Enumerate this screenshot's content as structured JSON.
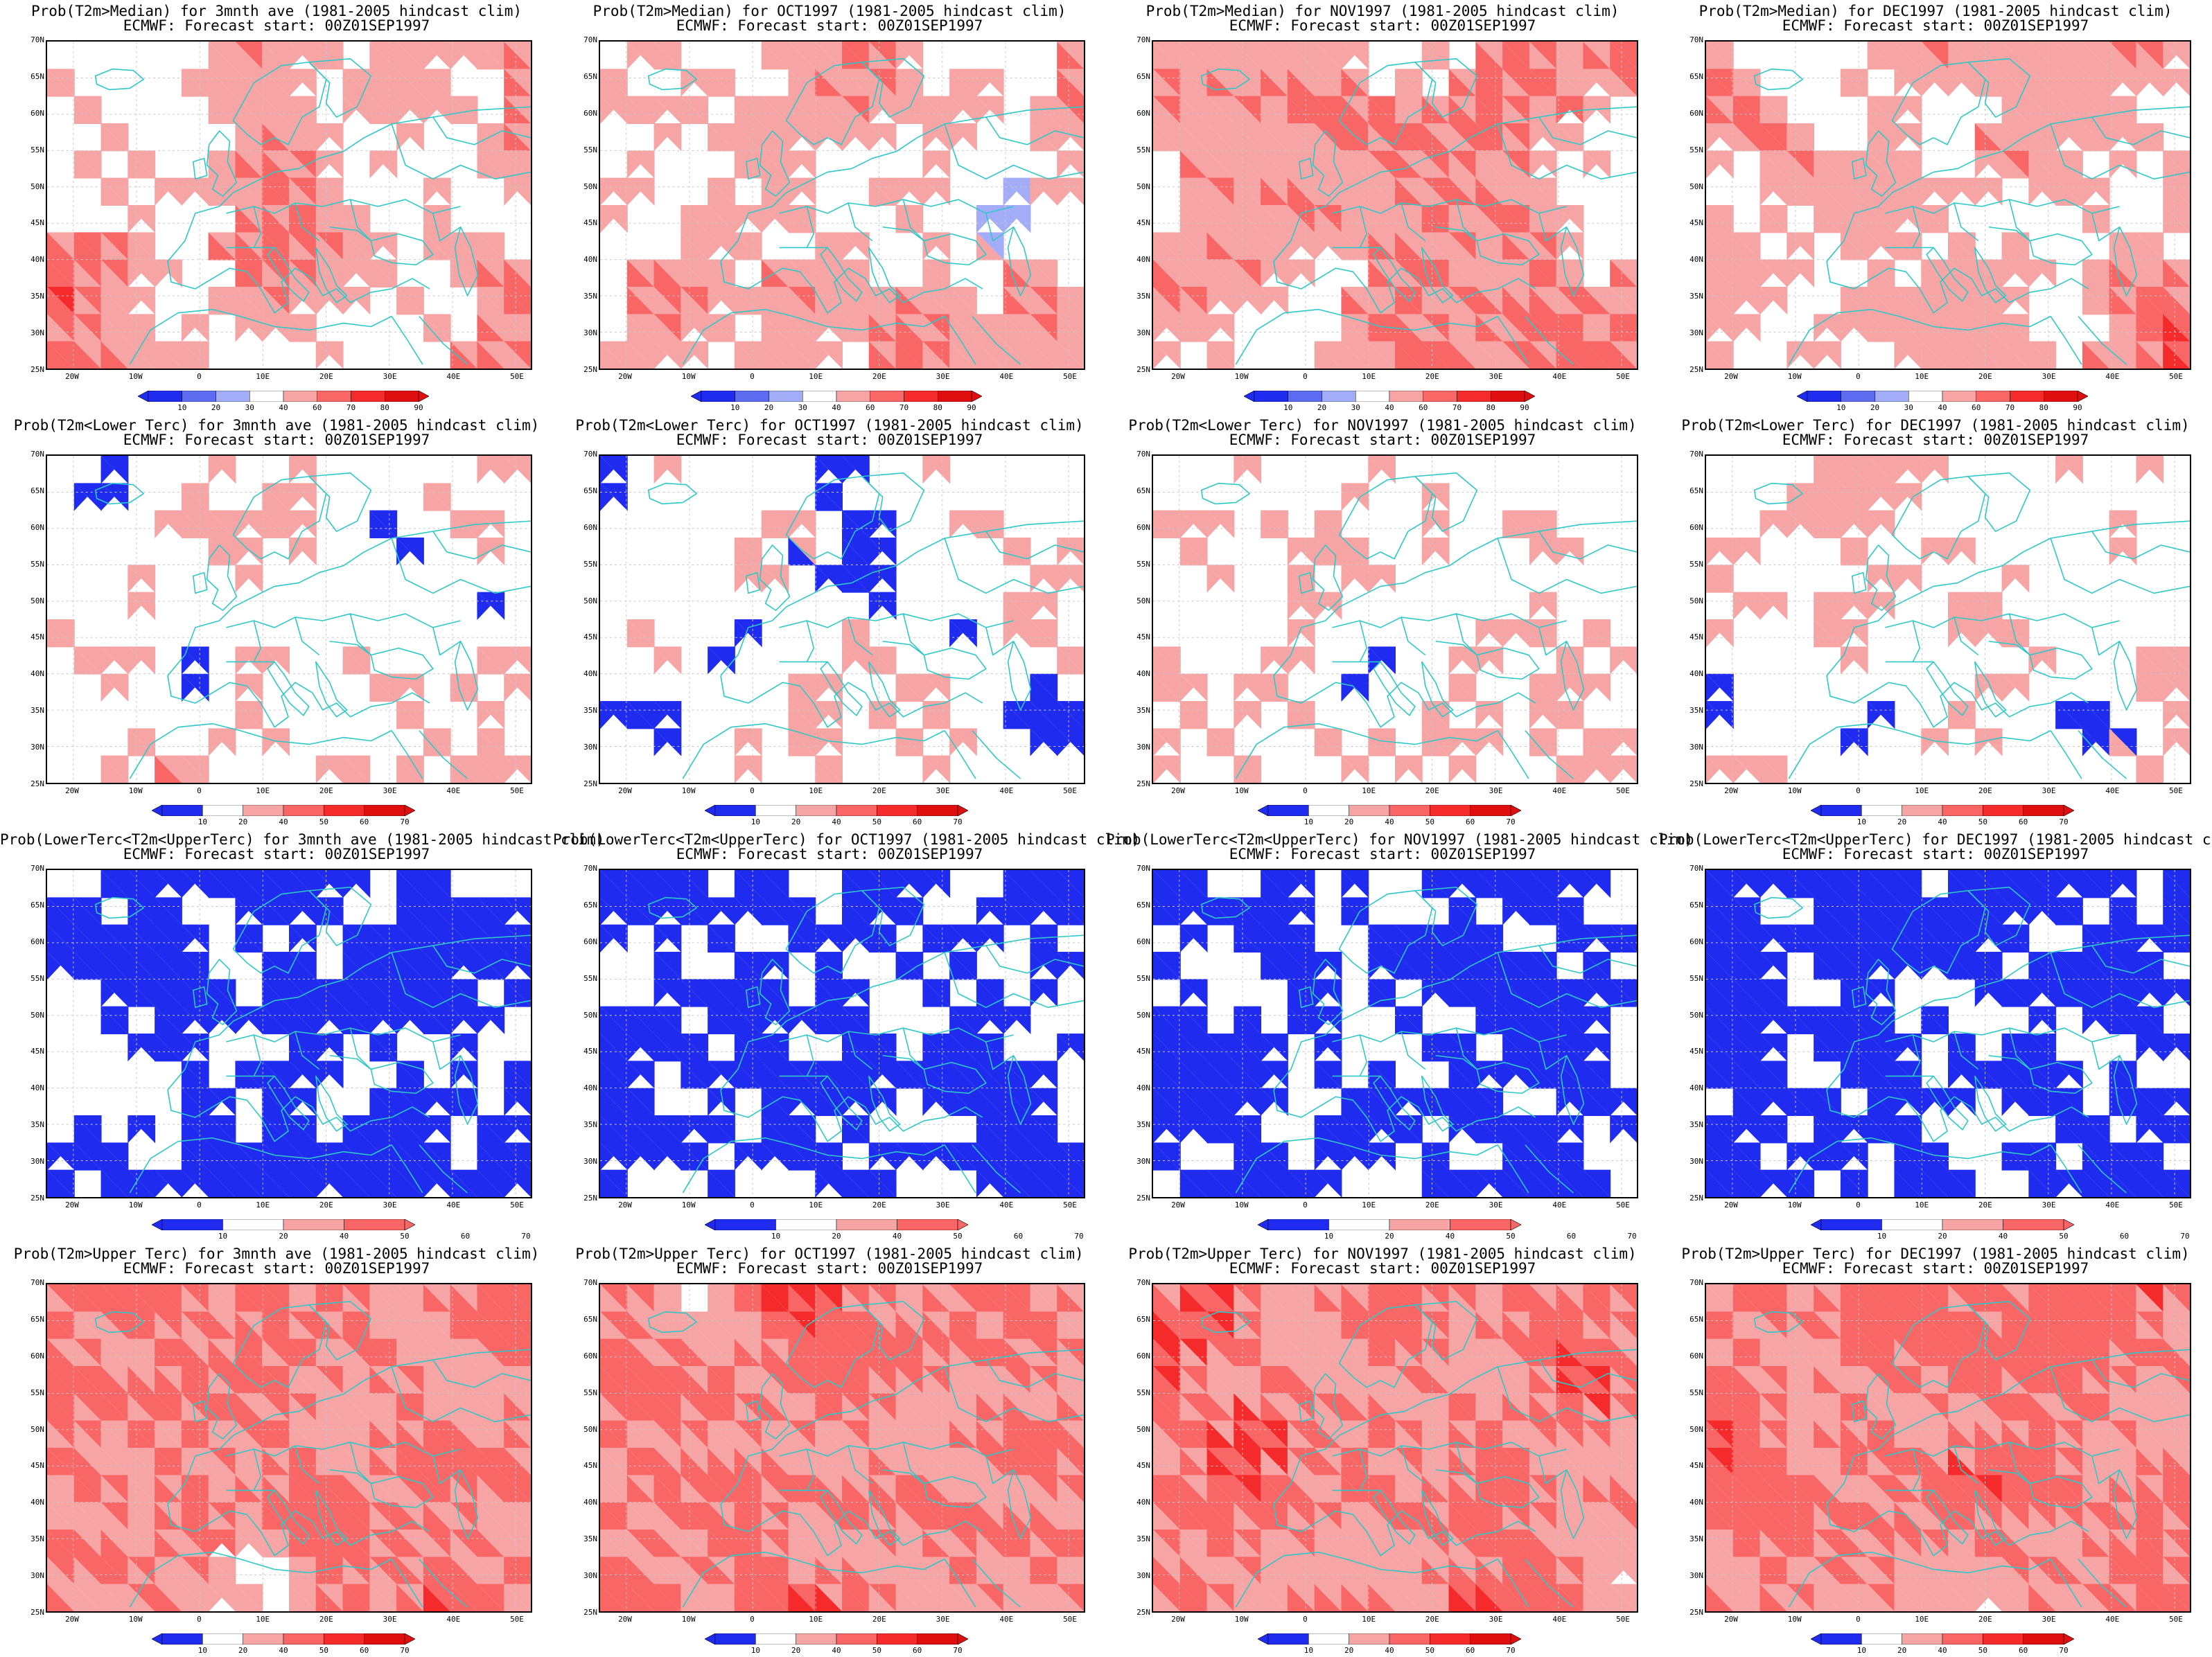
{
  "colors": {
    "blue_strong": "#1f2bef",
    "blue_mid": "#5c6bf0",
    "blue_light": "#a3acf6",
    "red_light": "#f7a4a4",
    "red_mid": "#f86666",
    "red_strong": "#f52a2a",
    "red_dark": "#e00f0f",
    "coast": "#2ec8c8",
    "grid": "#c8c8c8"
  },
  "y_ticks": [
    "70N",
    "65N",
    "60N",
    "55N",
    "50N",
    "45N",
    "40N",
    "35N",
    "30N",
    "25N"
  ],
  "x_ticks": [
    "20W",
    "10W",
    "0",
    "10E",
    "20E",
    "30E",
    "40E",
    "50E"
  ],
  "colorbar_median": [
    "10",
    "20",
    "30",
    "40",
    "60",
    "70",
    "80",
    "90"
  ],
  "colorbar_tercile": [
    "10",
    "20",
    "40",
    "50",
    "60",
    "70"
  ],
  "forecast_line": "ECMWF: Forecast start: 00Z01SEP1997",
  "rows": [
    {
      "variable": "median",
      "titles": [
        "Prob(T2m>Median) for 3mnth ave (1981-2005 hindcast clim)",
        "Prob(T2m>Median) for OCT1997 (1981-2005 hindcast clim)",
        "Prob(T2m>Median) for NOV1997 (1981-2005 hindcast clim)",
        "Prob(T2m>Median) for DEC1997 (1981-2005 hindcast clim)"
      ]
    },
    {
      "variable": "lower",
      "titles": [
        "Prob(T2m<Lower Terc) for 3mnth ave (1981-2005 hindcast clim)",
        "Prob(T2m<Lower Terc) for OCT1997 (1981-2005 hindcast clim)",
        "Prob(T2m<Lower Terc) for NOV1997 (1981-2005 hindcast clim)",
        "Prob(T2m<Lower Terc) for DEC1997 (1981-2005 hindcast clim)"
      ]
    },
    {
      "variable": "middle",
      "titles": [
        "Prob(LowerTerc<T2m<UpperTerc) for 3mnth ave (1981-2005 hindcast clim)",
        "Prob(LowerTerc<T2m<UpperTerc) for OCT1997 (1981-2005 hindcast clim)",
        "Prob(LowerTerc<T2m<UpperTerc) for NOV1997 (1981-2005 hindcast clim)",
        "Prob(LowerTerc<T2m<UpperTerc) for DEC1997 (1981-2005 hindcast clim)"
      ]
    },
    {
      "variable": "upper",
      "titles": [
        "Prob(T2m>Upper Terc) for 3mnth ave (1981-2005 hindcast clim)",
        "Prob(T2m>Upper Terc) for OCT1997 (1981-2005 hindcast clim)",
        "Prob(T2m>Upper Terc) for NOV1997 (1981-2005 hindcast clim)",
        "Prob(T2m>Upper Terc) for DEC1997 (1981-2005 hindcast clim)"
      ]
    }
  ]
}
